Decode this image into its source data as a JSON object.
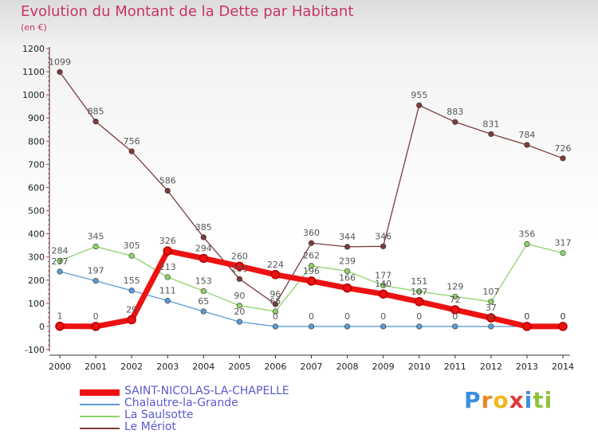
{
  "chart_data": {
    "type": "line",
    "title": "Evolution du Montant de la Dette par Habitant",
    "subtitle": "(en €)",
    "x": [
      "2000",
      "2001",
      "2002",
      "2003",
      "2004",
      "2005",
      "2006",
      "2007",
      "2008",
      "2009",
      "2010",
      "2011",
      "2012",
      "2013",
      "2014"
    ],
    "ylim": [
      -100,
      1200
    ],
    "yticks": [
      -100,
      0,
      100,
      200,
      300,
      400,
      500,
      600,
      700,
      800,
      900,
      1000,
      1100,
      1200
    ],
    "grid": false,
    "legend_position": "bottom-left",
    "series": [
      {
        "name": "SAINT-NICOLAS-LA-CHAPELLE",
        "color": "#ee1111",
        "values": [
          1,
          0,
          29,
          326,
          294,
          260,
          224,
          196,
          166,
          140,
          107,
          72,
          37,
          0,
          0
        ]
      },
      {
        "name": "Chalautre-la-Grande",
        "color": "#5b9bd5",
        "values": [
          237,
          197,
          155,
          111,
          65,
          20,
          0,
          0,
          0,
          0,
          0,
          0,
          0,
          0,
          0
        ]
      },
      {
        "name": "La Saulsotte",
        "color": "#8fd16a",
        "values": [
          284,
          345,
          305,
          213,
          153,
          90,
          65,
          262,
          239,
          177,
          151,
          129,
          107,
          356,
          317
        ]
      },
      {
        "name": "Le Mériot",
        "color": "#7d3b3b",
        "values": [
          1099,
          885,
          756,
          586,
          385,
          205,
          96,
          360,
          344,
          346,
          955,
          883,
          831,
          784,
          726
        ]
      }
    ]
  },
  "logo": {
    "letters": [
      "P",
      "r",
      "o",
      "x",
      "i",
      "t",
      "i"
    ],
    "colors": [
      "#3b8ee0",
      "#e8862a",
      "#f2b61c",
      "#e03b3b",
      "#3b8ee0",
      "#8fc23b",
      "#8fc23b"
    ]
  }
}
